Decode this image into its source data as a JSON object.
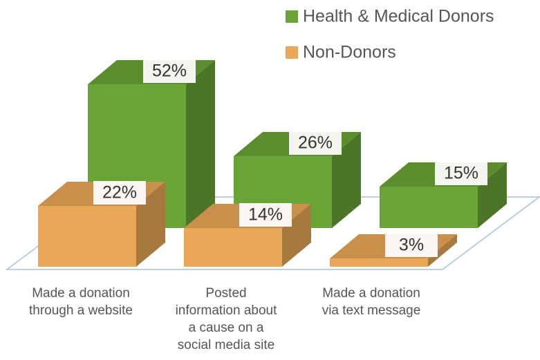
{
  "chart_data": {
    "type": "bar3d",
    "categories": [
      "Made a donation\nthrough a website",
      "Posted\ninformation about\na cause on a\nsocial media site",
      "Made a donation\nvia text message"
    ],
    "series": [
      {
        "name": "Health & Medical Donors",
        "color": "#6aa336",
        "values": [
          52,
          26,
          15
        ],
        "value_labels": [
          "52%",
          "26%",
          "15%"
        ]
      },
      {
        "name": "Non-Donors",
        "color": "#e8a857",
        "values": [
          22,
          14,
          3
        ],
        "value_labels": [
          "22%",
          "14%",
          "3%"
        ]
      }
    ],
    "legend": "top-right"
  }
}
